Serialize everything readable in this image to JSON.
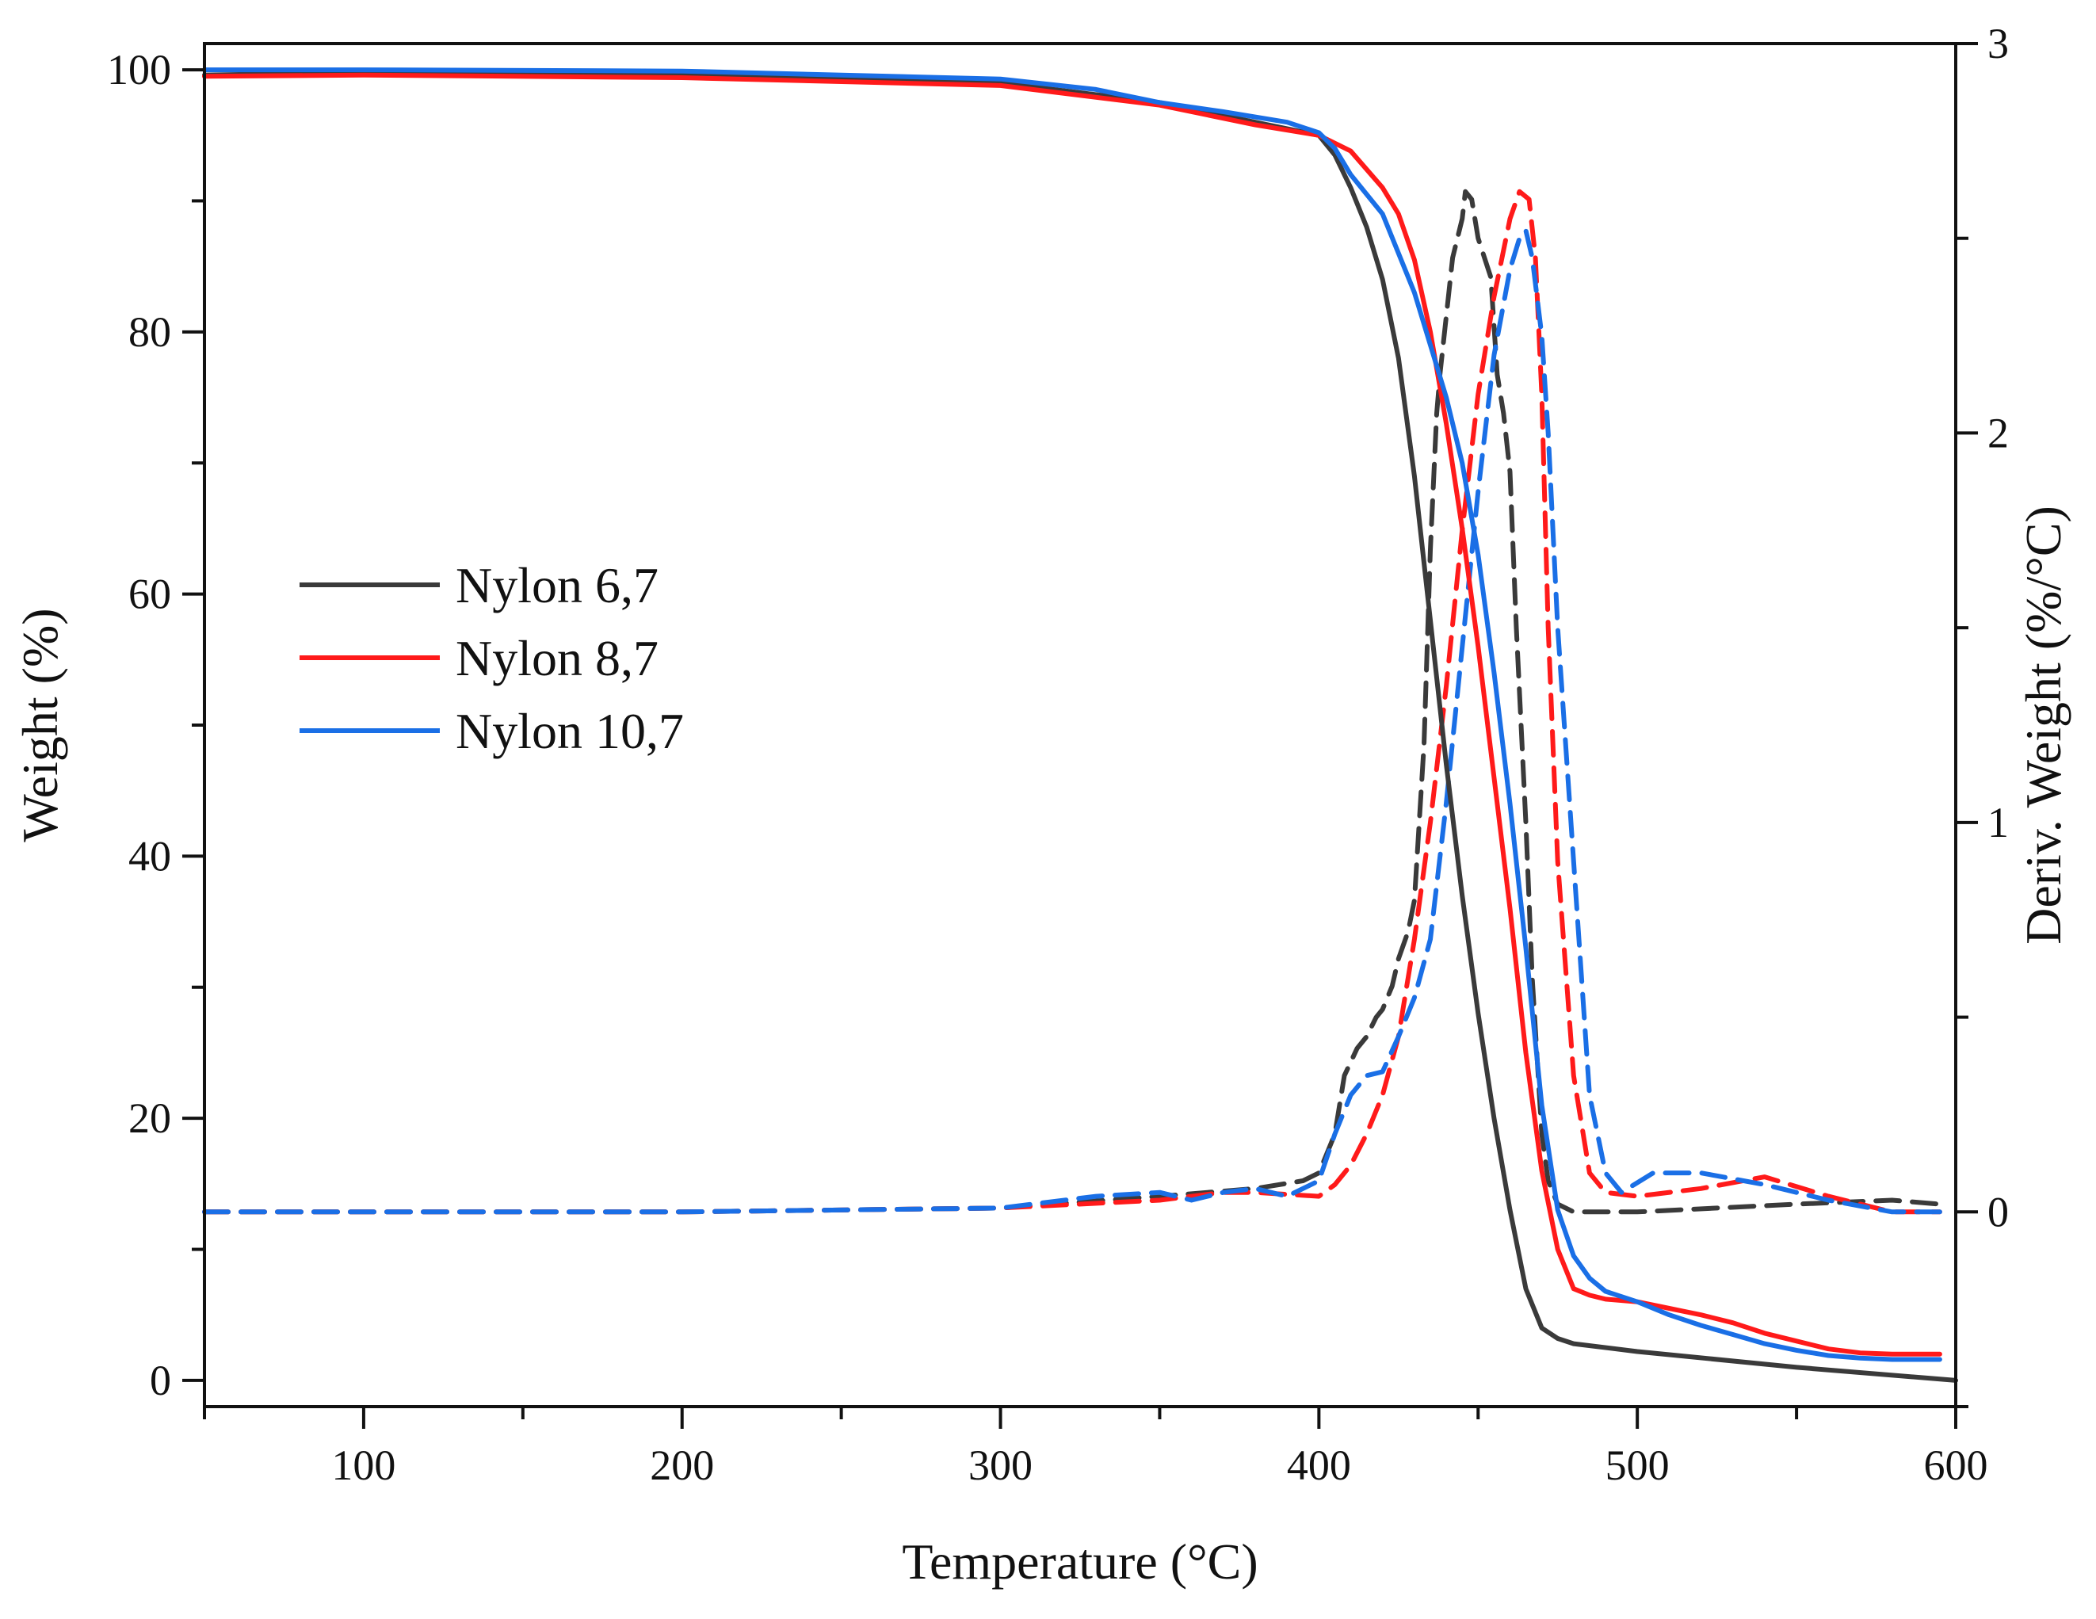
{
  "chart_data": {
    "type": "line",
    "title": "",
    "xlabel": "Temperature (°C)",
    "ylabel": "Weight (%)",
    "y2label": "Deriv. Weight (%/°C)",
    "xlim": [
      50,
      600
    ],
    "ylim": [
      -2,
      102
    ],
    "y2lim": [
      -0.5,
      3
    ],
    "x_ticks": [
      100,
      200,
      300,
      400,
      500,
      600
    ],
    "y_ticks": [
      0,
      20,
      40,
      60,
      80,
      100
    ],
    "y2_ticks": [
      0,
      1,
      2,
      3
    ],
    "grid": false,
    "legend_position": "center-left",
    "colors": {
      "nylon67": "#3a3a3a",
      "nylon87": "#ff1a1a",
      "nylon107": "#1a6fe6"
    },
    "series": [
      {
        "name": "Nylon 6,7",
        "axis": "left",
        "style": "solid",
        "color": "#3a3a3a",
        "x": [
          50,
          100,
          200,
          300,
          350,
          380,
          400,
          405,
          410,
          415,
          420,
          425,
          430,
          435,
          440,
          445,
          450,
          455,
          460,
          465,
          470,
          475,
          480,
          500,
          550,
          600
        ],
        "y": [
          99.6,
          99.8,
          99.6,
          99.0,
          97.5,
          96.0,
          95.0,
          93.5,
          91.0,
          88.0,
          84.0,
          78.0,
          69.0,
          58.0,
          47.0,
          37.0,
          28.0,
          20.0,
          13.0,
          7.0,
          4.0,
          3.2,
          2.8,
          2.2,
          1.0,
          0.0
        ]
      },
      {
        "name": "Nylon 8,7",
        "axis": "left",
        "style": "solid",
        "color": "#ff1a1a",
        "x": [
          50,
          100,
          200,
          300,
          350,
          380,
          400,
          410,
          420,
          425,
          430,
          435,
          440,
          445,
          450,
          455,
          460,
          465,
          470,
          475,
          480,
          485,
          490,
          500,
          510,
          520,
          530,
          540,
          550,
          560,
          570,
          580,
          595
        ],
        "y": [
          99.5,
          99.6,
          99.4,
          98.8,
          97.3,
          95.8,
          95.0,
          93.8,
          91.0,
          89.0,
          85.5,
          80.0,
          73.0,
          65.0,
          56.0,
          46.0,
          36.0,
          25.0,
          16.0,
          10.0,
          7.0,
          6.5,
          6.2,
          6.0,
          5.5,
          5.0,
          4.4,
          3.6,
          3.0,
          2.4,
          2.1,
          2.0,
          2.0
        ]
      },
      {
        "name": "Nylon 10,7",
        "axis": "left",
        "style": "solid",
        "color": "#1a6fe6",
        "x": [
          50,
          100,
          200,
          300,
          330,
          350,
          370,
          390,
          400,
          405,
          410,
          420,
          430,
          440,
          445,
          450,
          455,
          460,
          465,
          470,
          475,
          480,
          485,
          490,
          500,
          510,
          520,
          530,
          540,
          550,
          560,
          570,
          580,
          595
        ],
        "y": [
          100.0,
          100.0,
          99.9,
          99.3,
          98.5,
          97.5,
          96.8,
          96.0,
          95.2,
          94.0,
          92.0,
          89.0,
          83.0,
          75.0,
          70.0,
          63.0,
          54.0,
          44.0,
          33.0,
          21.0,
          13.0,
          9.5,
          7.8,
          6.8,
          6.0,
          5.0,
          4.2,
          3.5,
          2.8,
          2.3,
          1.9,
          1.7,
          1.6,
          1.6
        ]
      },
      {
        "name": "Nylon 6,7 (derivative)",
        "axis": "right",
        "style": "dashed",
        "color": "#3a3a3a",
        "x": [
          50,
          100,
          200,
          300,
          350,
          380,
          395,
          400,
          405,
          408,
          412,
          415,
          418,
          420,
          423,
          425,
          428,
          430,
          433,
          435,
          437,
          438,
          440,
          442,
          445,
          446,
          448,
          450,
          452,
          454,
          456,
          458,
          460,
          462,
          465,
          467,
          470,
          472,
          475,
          480,
          500,
          550,
          580,
          595
        ],
        "y": [
          0.0,
          0.0,
          0.0,
          0.01,
          0.04,
          0.06,
          0.08,
          0.1,
          0.2,
          0.35,
          0.42,
          0.45,
          0.5,
          0.52,
          0.58,
          0.65,
          0.72,
          0.8,
          1.2,
          1.7,
          2.05,
          2.15,
          2.3,
          2.45,
          2.55,
          2.62,
          2.6,
          2.5,
          2.45,
          2.4,
          2.15,
          2.05,
          1.9,
          1.5,
          1.0,
          0.6,
          0.2,
          0.08,
          0.02,
          0.0,
          0.0,
          0.02,
          0.03,
          0.02
        ]
      },
      {
        "name": "Nylon 8,7 (derivative)",
        "axis": "right",
        "style": "dashed",
        "color": "#ff1a1a",
        "x": [
          50,
          100,
          200,
          300,
          350,
          370,
          380,
          400,
          405,
          410,
          415,
          420,
          425,
          430,
          435,
          440,
          445,
          450,
          455,
          460,
          463,
          466,
          468,
          470,
          472,
          475,
          480,
          485,
          490,
          500,
          520,
          540,
          560,
          580,
          595
        ],
        "y": [
          0.0,
          0.0,
          0.0,
          0.01,
          0.03,
          0.05,
          0.05,
          0.04,
          0.07,
          0.12,
          0.2,
          0.3,
          0.45,
          0.7,
          1.0,
          1.35,
          1.75,
          2.1,
          2.35,
          2.55,
          2.62,
          2.6,
          2.45,
          2.1,
          1.5,
          0.9,
          0.35,
          0.1,
          0.05,
          0.04,
          0.06,
          0.09,
          0.04,
          0.0,
          0.0
        ]
      },
      {
        "name": "Nylon 10,7 (derivative)",
        "axis": "right",
        "style": "dashed",
        "color": "#1a6fe6",
        "x": [
          50,
          100,
          200,
          300,
          330,
          350,
          360,
          370,
          380,
          390,
          400,
          405,
          410,
          415,
          420,
          425,
          430,
          435,
          440,
          445,
          450,
          455,
          460,
          463,
          465,
          467,
          470,
          472,
          475,
          480,
          485,
          490,
          495,
          505,
          520,
          540,
          560,
          580,
          595
        ],
        "y": [
          0.0,
          0.0,
          0.0,
          0.01,
          0.04,
          0.05,
          0.03,
          0.05,
          0.06,
          0.04,
          0.08,
          0.2,
          0.3,
          0.35,
          0.36,
          0.45,
          0.55,
          0.7,
          1.05,
          1.45,
          1.85,
          2.2,
          2.42,
          2.5,
          2.52,
          2.45,
          2.25,
          2.0,
          1.5,
          0.9,
          0.3,
          0.1,
          0.05,
          0.1,
          0.1,
          0.07,
          0.03,
          0.0,
          0.0
        ]
      }
    ]
  }
}
